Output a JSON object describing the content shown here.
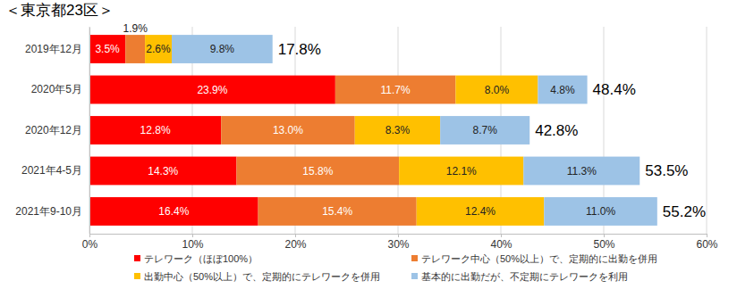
{
  "chart_data": {
    "type": "bar",
    "title": "＜東京都23区＞",
    "orientation": "horizontal",
    "stacked": true,
    "data_labels": true,
    "grid": true,
    "legend": "bottom",
    "categories": [
      "2019年12月",
      "2020年5月",
      "2020年12月",
      "2021年4-5月",
      "2021年9-10月"
    ],
    "series": [
      {
        "name": "テレワーク（ほぼ100%）",
        "color": "#ff0000",
        "values": [
          3.5,
          23.9,
          12.8,
          14.3,
          16.4
        ],
        "value_labels": [
          "3.5%",
          "23.9%",
          "12.8%",
          "14.3%",
          "16.4%"
        ]
      },
      {
        "name": "テレワーク中心（50%以上）で、定期的に出勤を併用",
        "color": "#ed7d31",
        "values": [
          1.9,
          11.7,
          13.0,
          15.8,
          15.4
        ],
        "value_labels": [
          "1.9%",
          "11.7%",
          "13.0%",
          "15.8%",
          "15.4%"
        ]
      },
      {
        "name": "出勤中心（50%以上）で、定期的にテレワークを併用",
        "color": "#ffc000",
        "values": [
          2.6,
          8.0,
          8.3,
          12.1,
          12.4
        ],
        "value_labels": [
          "2.6%",
          "8.0%",
          "8.3%",
          "12.1%",
          "12.4%"
        ]
      },
      {
        "name": "基本的に出勤だが、不定期にテレワークを利用",
        "color": "#9dc3e6",
        "values": [
          9.8,
          4.8,
          8.7,
          11.3,
          11.0
        ],
        "value_labels": [
          "9.8%",
          "4.8%",
          "8.7%",
          "11.3%",
          "11.0%"
        ]
      }
    ],
    "totals": [
      17.8,
      48.4,
      42.8,
      53.5,
      55.2
    ],
    "total_labels": [
      "17.8%",
      "48.4%",
      "42.8%",
      "53.5%",
      "55.2%"
    ],
    "xlim": [
      0,
      60
    ],
    "xticks": [
      {
        "value": 0,
        "label": "0%"
      },
      {
        "value": 10,
        "label": "10%"
      },
      {
        "value": 20,
        "label": "20%"
      },
      {
        "value": 30,
        "label": "30%"
      },
      {
        "value": 40,
        "label": "40%"
      },
      {
        "value": 50,
        "label": "50%"
      },
      {
        "value": 60,
        "label": "60%"
      }
    ]
  }
}
